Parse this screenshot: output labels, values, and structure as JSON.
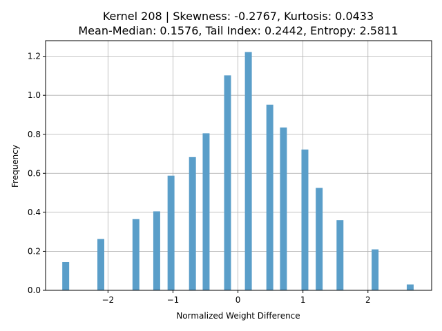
{
  "chart_data": {
    "type": "bar",
    "title_line1": "Kernel 208 | Skewness: -0.2767, Kurtosis: 0.0433",
    "title_line2": "Mean-Median: 0.1576, Tail Index: 0.2442, Entropy: 2.5811",
    "xlabel": "Normalized Weight Difference",
    "ylabel": "Frequency",
    "xlim": [
      -2.96,
      2.98
    ],
    "ylim": [
      0,
      1.28
    ],
    "xticks": [
      -2,
      -1,
      0,
      1,
      2
    ],
    "xtick_labels": [
      "−2",
      "−1",
      "0",
      "1",
      "2"
    ],
    "yticks": [
      0.0,
      0.2,
      0.4,
      0.6,
      0.8,
      1.0,
      1.2
    ],
    "ytick_labels": [
      "0.0",
      "0.2",
      "0.4",
      "0.6",
      "0.8",
      "1.0",
      "1.2"
    ],
    "grid": true,
    "bar_color": "#5a9ec9",
    "bar_width": 0.106,
    "bars": [
      {
        "x": -2.65,
        "value": 0.145
      },
      {
        "x": -2.11,
        "value": 0.263
      },
      {
        "x": -1.57,
        "value": 0.365
      },
      {
        "x": -1.25,
        "value": 0.405
      },
      {
        "x": -1.03,
        "value": 0.588
      },
      {
        "x": -0.7,
        "value": 0.683
      },
      {
        "x": -0.49,
        "value": 0.805
      },
      {
        "x": -0.16,
        "value": 1.102
      },
      {
        "x": 0.16,
        "value": 1.222
      },
      {
        "x": 0.49,
        "value": 0.952
      },
      {
        "x": 0.7,
        "value": 0.835
      },
      {
        "x": 1.03,
        "value": 0.722
      },
      {
        "x": 1.25,
        "value": 0.525
      },
      {
        "x": 1.57,
        "value": 0.36
      },
      {
        "x": 2.11,
        "value": 0.21
      },
      {
        "x": 2.65,
        "value": 0.03
      }
    ]
  }
}
